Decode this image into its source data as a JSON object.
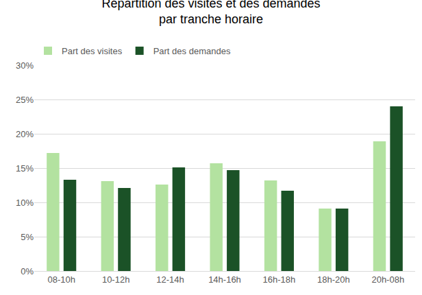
{
  "chart_data": {
    "type": "bar",
    "title": "Répartition des visites et des demandes\npar tranche horaire",
    "categories": [
      "08-10h",
      "10-12h",
      "12-14h",
      "14h-16h",
      "16h-18h",
      "18h-20h",
      "20h-08h"
    ],
    "series": [
      {
        "name": "Part des visites",
        "color": "#b3e2a0",
        "values": [
          17.2,
          13.1,
          12.6,
          15.7,
          13.2,
          9.1,
          18.9
        ]
      },
      {
        "name": "Part des demandes",
        "color": "#1b5227",
        "values": [
          13.3,
          12.1,
          15.1,
          14.7,
          11.7,
          9.1,
          24.0
        ]
      }
    ],
    "ylim": [
      0,
      30
    ],
    "yticks": [
      {
        "value": 0,
        "label": "0%"
      },
      {
        "value": 5,
        "label": "5%"
      },
      {
        "value": 10,
        "label": "10%"
      },
      {
        "value": 15,
        "label": "15%"
      },
      {
        "value": 20,
        "label": "20%"
      },
      {
        "value": 25,
        "label": "25%"
      },
      {
        "value": 30,
        "label": "30%"
      }
    ],
    "grid": true,
    "legend": "top-left"
  }
}
